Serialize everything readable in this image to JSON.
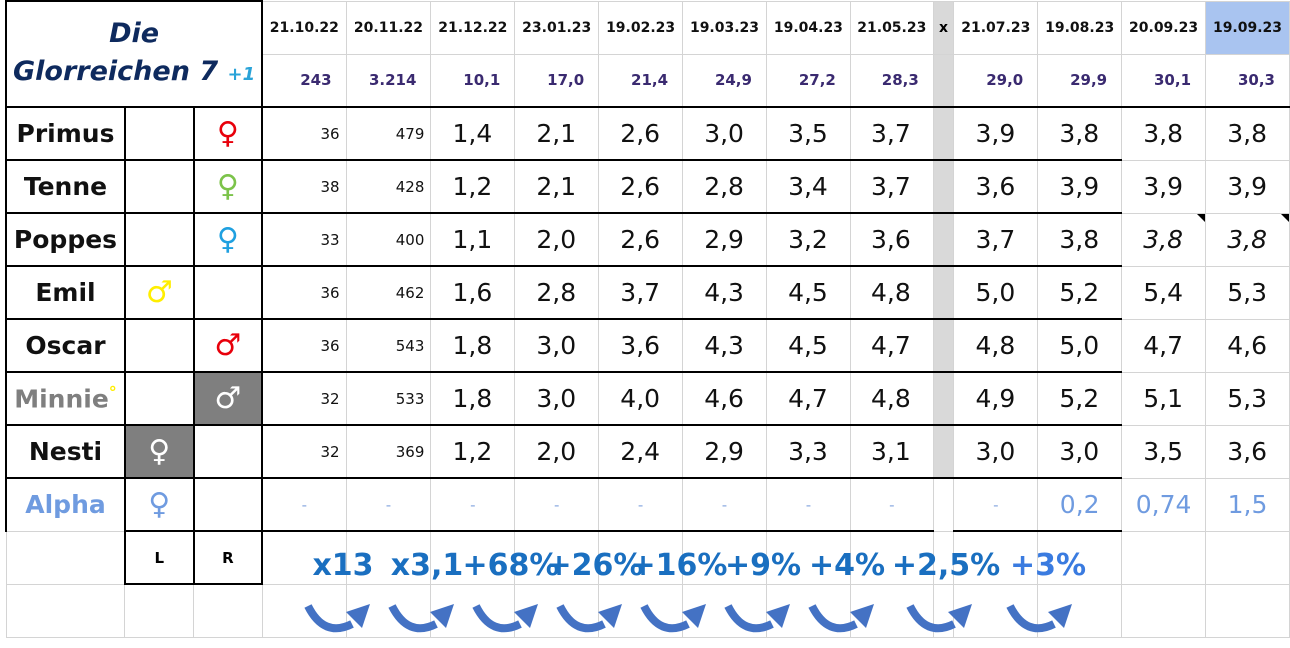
{
  "title": {
    "line1": "Die",
    "line2": "Glorreichen 7",
    "plus": "+1"
  },
  "dates": [
    "21.10.22",
    "20.11.22",
    "21.12.22",
    "23.01.23",
    "19.02.23",
    "19.03.23",
    "19.04.23",
    "21.05.23",
    "x",
    "21.07.23",
    "19.08.23",
    "20.09.23",
    "19.09.23"
  ],
  "totals": [
    "243",
    "3.214",
    "10,1",
    "17,0",
    "21,4",
    "24,9",
    "27,2",
    "28,3",
    "",
    "29,0",
    "29,9",
    "30,1",
    "30,3"
  ],
  "colors": {
    "red": "#e8000b",
    "green": "#7cc34a",
    "cyan": "#1fa0e0",
    "yellow": "#ffee00",
    "gray": "#7f7f7f",
    "alpha": "#6f9be0"
  },
  "rows": [
    {
      "name": "Primus",
      "side": "R",
      "symbol": "♀",
      "color": "#e8000b",
      "values": [
        "36",
        "479",
        "1,4",
        "2,1",
        "2,6",
        "3,0",
        "3,5",
        "3,7",
        "",
        "3,9",
        "3,8",
        "3,8",
        "3,8"
      ]
    },
    {
      "name": "Tenne",
      "side": "R",
      "symbol": "♀",
      "color": "#7cc34a",
      "values": [
        "38",
        "428",
        "1,2",
        "2,1",
        "2,6",
        "2,8",
        "3,4",
        "3,7",
        "",
        "3,6",
        "3,9",
        "3,9",
        "3,9"
      ]
    },
    {
      "name": "Poppes",
      "side": "R",
      "symbol": "♀",
      "color": "#1fa0e0",
      "values": [
        "33",
        "400",
        "1,1",
        "2,0",
        "2,6",
        "2,9",
        "3,2",
        "3,6",
        "",
        "3,7",
        "3,8",
        "3,8",
        "3,8"
      ],
      "italic_last": 2
    },
    {
      "name": "Emil",
      "side": "L",
      "symbol": "♂",
      "color": "#ffee00",
      "values": [
        "36",
        "462",
        "1,6",
        "2,8",
        "3,7",
        "4,3",
        "4,5",
        "4,8",
        "",
        "5,0",
        "5,2",
        "5,4",
        "5,3"
      ]
    },
    {
      "name": "Oscar",
      "side": "R",
      "symbol": "♂",
      "color": "#e8000b",
      "values": [
        "36",
        "543",
        "1,8",
        "3,0",
        "3,6",
        "4,3",
        "4,5",
        "4,7",
        "",
        "4,8",
        "5,0",
        "4,7",
        "4,6"
      ]
    },
    {
      "name": "Minnie",
      "mark": "°",
      "side": "R",
      "symbol": "♂",
      "color": "#ffffff",
      "bg": "#7f7f7f",
      "namecolor": "#7f7f7f",
      "values": [
        "32",
        "533",
        "1,8",
        "3,0",
        "4,0",
        "4,6",
        "4,7",
        "4,8",
        "",
        "4,9",
        "5,2",
        "5,1",
        "5,3"
      ]
    },
    {
      "name": "Nesti",
      "side": "L",
      "symbol": "♀",
      "color": "#ffffff",
      "bg": "#7f7f7f",
      "values": [
        "32",
        "369",
        "1,2",
        "2,0",
        "2,4",
        "2,9",
        "3,3",
        "3,1",
        "",
        "3,0",
        "3,0",
        "3,5",
        "3,6"
      ]
    },
    {
      "name": "Alpha",
      "side": "L",
      "symbol": "♀",
      "color": "#6f9be0",
      "namecolor": "#6f9be0",
      "alpha": true,
      "values": [
        "-",
        "-",
        "-",
        "-",
        "-",
        "-",
        "-",
        "-",
        "",
        "-",
        "0,2",
        "0,74",
        "1,5"
      ]
    }
  ],
  "footer": {
    "left": "L",
    "right": "R"
  },
  "growth": [
    "x13",
    "x3,1",
    "+68%",
    "+26%",
    "+16%",
    "+9%",
    "+4%",
    "+2,5%",
    "+3%"
  ]
}
